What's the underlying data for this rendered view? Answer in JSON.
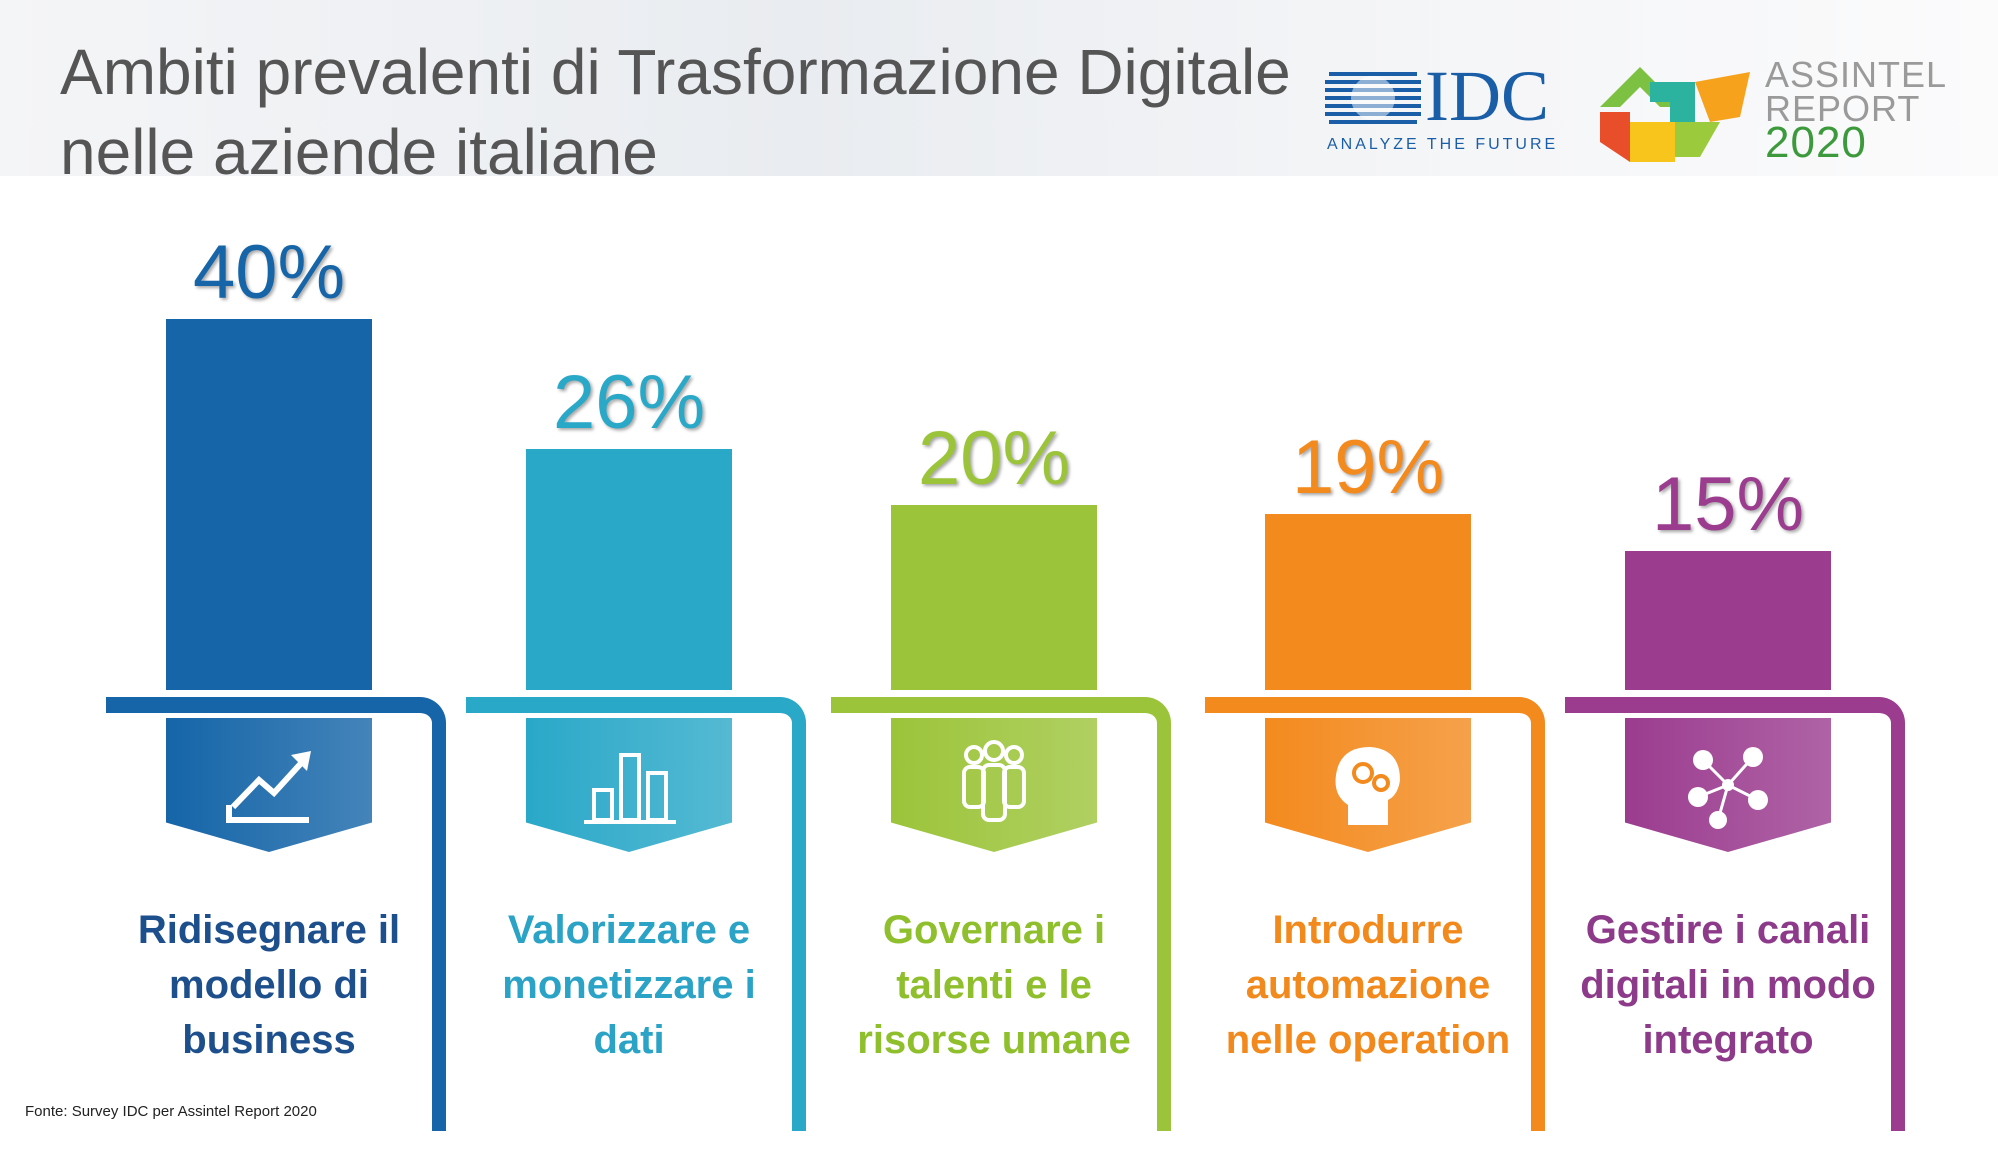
{
  "chart_data": {
    "type": "bar",
    "title": "Ambiti prevalenti di Trasformazione Digitale nelle aziende italiane",
    "categories": [
      "Ridisegnare il modello di business",
      "Valorizzare e monetizzare i dati",
      "Governare i talenti e le risorse umane",
      "Introdurre automazione nelle operation",
      "Gestire i canali digitali in modo integrato"
    ],
    "values": [
      40,
      26,
      20,
      19,
      15
    ],
    "value_labels": [
      "40%",
      "26%",
      "20%",
      "19%",
      "15%"
    ],
    "colors": [
      "#1565a8",
      "#2aa8c8",
      "#9cc43a",
      "#f38a1e",
      "#9b3c8f"
    ],
    "label_colors": [
      "#1c4f8c",
      "#2aa3c6",
      "#8fbf2c",
      "#f2891c",
      "#8d3a8a"
    ],
    "source": "Fonte: Survey IDC per Assintel Report 2020"
  },
  "logos": {
    "idc": "IDC",
    "idc_tagline": "ANALYZE THE FUTURE",
    "assintel_1": "ASSINTEL",
    "assintel_2": "REPORT",
    "assintel_3": "2020"
  }
}
